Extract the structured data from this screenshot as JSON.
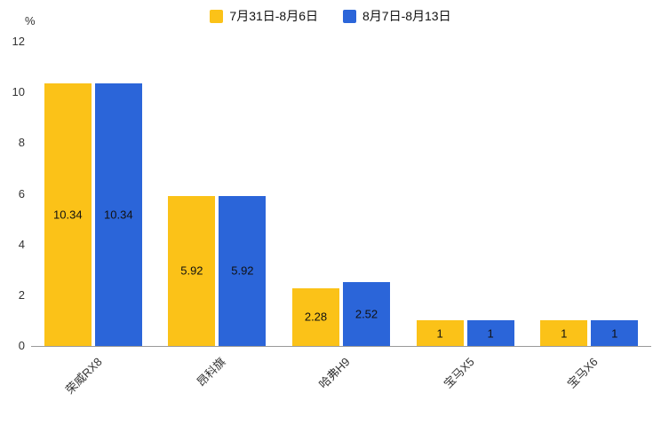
{
  "chart_data": {
    "type": "bar",
    "categories": [
      "荣威RX8",
      "昂科旗",
      "哈弗H9",
      "宝马X5",
      "宝马X6"
    ],
    "series": [
      {
        "name": "7月31日-8月6日",
        "color": "#FBC218",
        "values": [
          10.34,
          5.92,
          2.28,
          1,
          1
        ]
      },
      {
        "name": "8月7日-8月13日",
        "color": "#2B65D9",
        "values": [
          10.34,
          5.92,
          2.52,
          1,
          1
        ]
      }
    ],
    "title": "",
    "xlabel": "",
    "ylabel": "%",
    "ylim": [
      0,
      12
    ],
    "yticks": [
      0,
      2,
      4,
      6,
      8,
      10,
      12
    ],
    "grid": "off",
    "legend_position": "top",
    "value_labels": "inside-center",
    "text_color": "#333333",
    "value_label_color": "#111111",
    "axis_line_color": "#999999",
    "background": "#ffffff"
  }
}
